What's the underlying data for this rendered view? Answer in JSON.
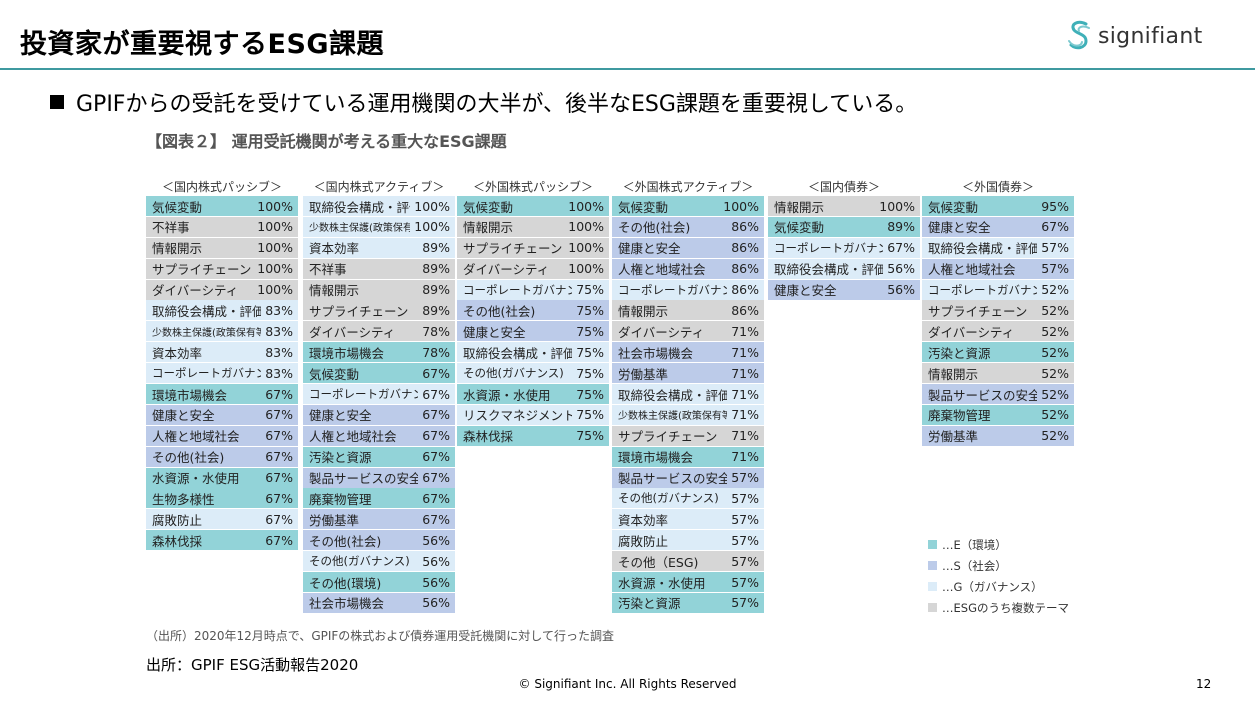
{
  "slide": {
    "title": "投資家が重要視するESG課題",
    "bullet": "GPIFからの受託を受けている運用機関の大半が、後半なESG課題を重要視している。",
    "figure_title": "【図表２】 運用受託機関が考える重大なESG課題",
    "source_note": "（出所）2020年12月時点で、GPIFの株式および債券運用受託機関に対して行った調査",
    "citation": "出所：GPIF ESG活動報告2020",
    "copyright": "© Signifiant Inc. All Rights Reserved",
    "page_number": "12"
  },
  "logo": {
    "text": "signifiant",
    "icon": "signifiant-logo-icon"
  },
  "colors": {
    "E": "#92d3d8",
    "S": "#bccbe9",
    "G": "#dcecf8",
    "M": "#d6d6d6",
    "accent": "#3f9aa0"
  },
  "legend": [
    {
      "cat": "E",
      "label": "…E（環境）"
    },
    {
      "cat": "S",
      "label": "…S（社会）"
    },
    {
      "cat": "G",
      "label": "…G（ガバナンス）"
    },
    {
      "cat": "M",
      "label": "…ESGのうち複数テーマ"
    }
  ],
  "columns": [
    {
      "header": "＜国内株式パッシブ＞",
      "items": [
        {
          "label": "気候変動",
          "pct": "100%",
          "cat": "E"
        },
        {
          "label": "不祥事",
          "pct": "100%",
          "cat": "M"
        },
        {
          "label": "情報開示",
          "pct": "100%",
          "cat": "M"
        },
        {
          "label": "サプライチェーン",
          "pct": "100%",
          "cat": "M"
        },
        {
          "label": "ダイバーシティ",
          "pct": "100%",
          "cat": "M"
        },
        {
          "label": "取締役会構成・評価",
          "pct": "83%",
          "cat": "G"
        },
        {
          "label": "少数株主保護(政策保有等)",
          "pct": "83%",
          "cat": "G"
        },
        {
          "label": "資本効率",
          "pct": "83%",
          "cat": "G"
        },
        {
          "label": "コーポレートガバナンス",
          "pct": "83%",
          "cat": "G"
        },
        {
          "label": "環境市場機会",
          "pct": "67%",
          "cat": "E"
        },
        {
          "label": "健康と安全",
          "pct": "67%",
          "cat": "S"
        },
        {
          "label": "人権と地域社会",
          "pct": "67%",
          "cat": "S"
        },
        {
          "label": "その他(社会)",
          "pct": "67%",
          "cat": "S"
        },
        {
          "label": "水資源・水使用",
          "pct": "67%",
          "cat": "E"
        },
        {
          "label": "生物多様性",
          "pct": "67%",
          "cat": "E"
        },
        {
          "label": "腐敗防止",
          "pct": "67%",
          "cat": "G"
        },
        {
          "label": "森林伐採",
          "pct": "67%",
          "cat": "E"
        }
      ]
    },
    {
      "header": "＜国内株式アクティブ＞",
      "items": [
        {
          "label": "取締役会構成・評価",
          "pct": "100%",
          "cat": "G"
        },
        {
          "label": "少数株主保護(政策保有等)",
          "pct": "100%",
          "cat": "G"
        },
        {
          "label": "資本効率",
          "pct": "89%",
          "cat": "G"
        },
        {
          "label": "不祥事",
          "pct": "89%",
          "cat": "M"
        },
        {
          "label": "情報開示",
          "pct": "89%",
          "cat": "M"
        },
        {
          "label": "サプライチェーン",
          "pct": "89%",
          "cat": "M"
        },
        {
          "label": "ダイバーシティ",
          "pct": "78%",
          "cat": "M"
        },
        {
          "label": "環境市場機会",
          "pct": "78%",
          "cat": "E"
        },
        {
          "label": "気候変動",
          "pct": "67%",
          "cat": "E"
        },
        {
          "label": "コーポレートガバナンス",
          "pct": "67%",
          "cat": "G"
        },
        {
          "label": "健康と安全",
          "pct": "67%",
          "cat": "S"
        },
        {
          "label": "人権と地域社会",
          "pct": "67%",
          "cat": "S"
        },
        {
          "label": "汚染と資源",
          "pct": "67%",
          "cat": "E"
        },
        {
          "label": "製品サービスの安全",
          "pct": "67%",
          "cat": "S"
        },
        {
          "label": "廃棄物管理",
          "pct": "67%",
          "cat": "E"
        },
        {
          "label": "労働基準",
          "pct": "67%",
          "cat": "S"
        },
        {
          "label": "その他(社会)",
          "pct": "56%",
          "cat": "S"
        },
        {
          "label": "その他(ガバナンス)",
          "pct": "56%",
          "cat": "G"
        },
        {
          "label": "その他(環境)",
          "pct": "56%",
          "cat": "E"
        },
        {
          "label": "社会市場機会",
          "pct": "56%",
          "cat": "S"
        }
      ]
    },
    {
      "header": "＜外国株式パッシブ＞",
      "items": [
        {
          "label": "気候変動",
          "pct": "100%",
          "cat": "E"
        },
        {
          "label": "情報開示",
          "pct": "100%",
          "cat": "M"
        },
        {
          "label": "サプライチェーン",
          "pct": "100%",
          "cat": "M"
        },
        {
          "label": "ダイバーシティ",
          "pct": "100%",
          "cat": "M"
        },
        {
          "label": "コーポレートガバナンス",
          "pct": "75%",
          "cat": "G"
        },
        {
          "label": "その他(社会)",
          "pct": "75%",
          "cat": "S"
        },
        {
          "label": "健康と安全",
          "pct": "75%",
          "cat": "S"
        },
        {
          "label": "取締役会構成・評価",
          "pct": "75%",
          "cat": "G"
        },
        {
          "label": "その他(ガバナンス)",
          "pct": "75%",
          "cat": "G"
        },
        {
          "label": "水資源・水使用",
          "pct": "75%",
          "cat": "E"
        },
        {
          "label": "リスクマネジメント",
          "pct": "75%",
          "cat": "G"
        },
        {
          "label": "森林伐採",
          "pct": "75%",
          "cat": "E"
        }
      ]
    },
    {
      "header": "＜外国株式アクティブ＞",
      "items": [
        {
          "label": "気候変動",
          "pct": "100%",
          "cat": "E"
        },
        {
          "label": "その他(社会)",
          "pct": "86%",
          "cat": "S"
        },
        {
          "label": "健康と安全",
          "pct": "86%",
          "cat": "S"
        },
        {
          "label": "人権と地域社会",
          "pct": "86%",
          "cat": "S"
        },
        {
          "label": "コーポレートガバナンス",
          "pct": "86%",
          "cat": "G"
        },
        {
          "label": "情報開示",
          "pct": "86%",
          "cat": "M"
        },
        {
          "label": "ダイバーシティ",
          "pct": "71%",
          "cat": "M"
        },
        {
          "label": "社会市場機会",
          "pct": "71%",
          "cat": "S"
        },
        {
          "label": "労働基準",
          "pct": "71%",
          "cat": "S"
        },
        {
          "label": "取締役会構成・評価",
          "pct": "71%",
          "cat": "G"
        },
        {
          "label": "少数株主保護(政策保有等)",
          "pct": "71%",
          "cat": "G"
        },
        {
          "label": "サプライチェーン",
          "pct": "71%",
          "cat": "M"
        },
        {
          "label": "環境市場機会",
          "pct": "71%",
          "cat": "E"
        },
        {
          "label": "製品サービスの安全",
          "pct": "57%",
          "cat": "S"
        },
        {
          "label": "その他(ガバナンス)",
          "pct": "57%",
          "cat": "G"
        },
        {
          "label": "資本効率",
          "pct": "57%",
          "cat": "G"
        },
        {
          "label": "腐敗防止",
          "pct": "57%",
          "cat": "G"
        },
        {
          "label": "その他（ESG)",
          "pct": "57%",
          "cat": "M"
        },
        {
          "label": "水資源・水使用",
          "pct": "57%",
          "cat": "E"
        },
        {
          "label": "汚染と資源",
          "pct": "57%",
          "cat": "E"
        }
      ]
    },
    {
      "header": "＜国内債券＞",
      "items": [
        {
          "label": "情報開示",
          "pct": "100%",
          "cat": "M"
        },
        {
          "label": "気候変動",
          "pct": "89%",
          "cat": "E"
        },
        {
          "label": "コーポレートガバナンス",
          "pct": "67%",
          "cat": "G"
        },
        {
          "label": "取締役会構成・評価",
          "pct": "56%",
          "cat": "G"
        },
        {
          "label": "健康と安全",
          "pct": "56%",
          "cat": "S"
        }
      ]
    },
    {
      "header": "＜外国債券＞",
      "items": [
        {
          "label": "気候変動",
          "pct": "95%",
          "cat": "E"
        },
        {
          "label": "健康と安全",
          "pct": "67%",
          "cat": "S"
        },
        {
          "label": "取締役会構成・評価",
          "pct": "57%",
          "cat": "G"
        },
        {
          "label": "人権と地域社会",
          "pct": "57%",
          "cat": "S"
        },
        {
          "label": "コーポレートガバナンス",
          "pct": "52%",
          "cat": "G"
        },
        {
          "label": "サプライチェーン",
          "pct": "52%",
          "cat": "M"
        },
        {
          "label": "ダイバーシティ",
          "pct": "52%",
          "cat": "M"
        },
        {
          "label": "汚染と資源",
          "pct": "52%",
          "cat": "E"
        },
        {
          "label": "情報開示",
          "pct": "52%",
          "cat": "M"
        },
        {
          "label": "製品サービスの安全",
          "pct": "52%",
          "cat": "S"
        },
        {
          "label": "廃棄物管理",
          "pct": "52%",
          "cat": "E"
        },
        {
          "label": "労働基準",
          "pct": "52%",
          "cat": "S"
        }
      ]
    }
  ]
}
